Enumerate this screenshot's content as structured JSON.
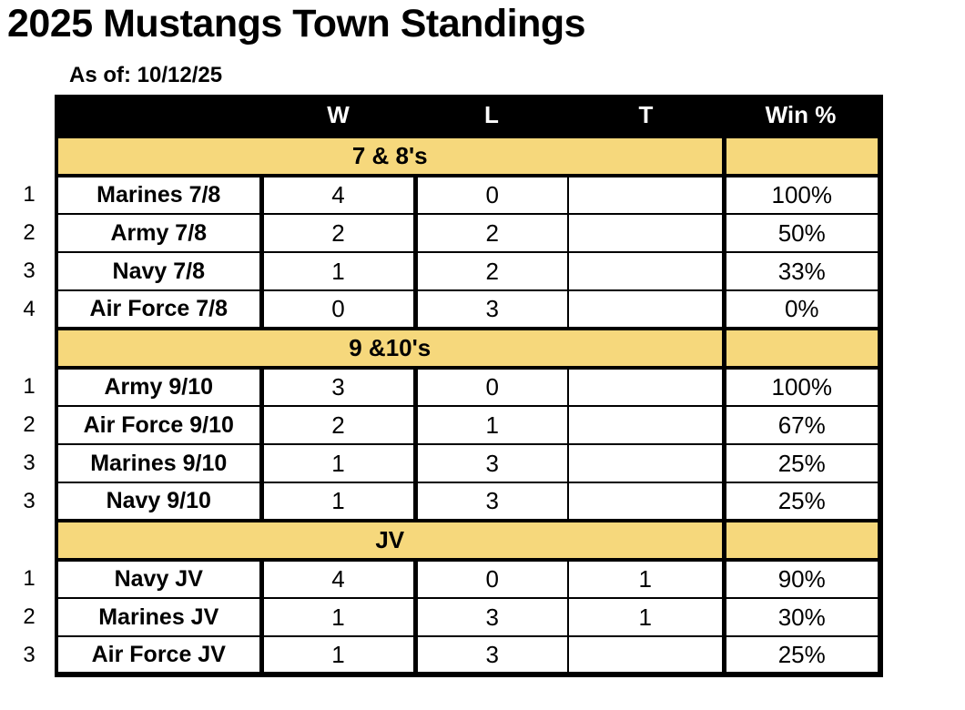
{
  "page": {
    "title": "2025 Mustangs Town Standings",
    "as_of": "As of: 10/12/25"
  },
  "table": {
    "columns": [
      "",
      "W",
      "L",
      "T",
      "Win %"
    ],
    "colors": {
      "header_bg": "#000000",
      "header_text": "#FFFFFF",
      "section_bg": "#F6D87C",
      "border": "#000000",
      "text": "#000000"
    },
    "sections": [
      {
        "label": "7 & 8's",
        "rows": [
          {
            "rank": "1",
            "team": "Marines 7/8",
            "w": "4",
            "l": "0",
            "t": "",
            "win_pct": "100%"
          },
          {
            "rank": "2",
            "team": "Army 7/8",
            "w": "2",
            "l": "2",
            "t": "",
            "win_pct": "50%"
          },
          {
            "rank": "3",
            "team": "Navy 7/8",
            "w": "1",
            "l": "2",
            "t": "",
            "win_pct": "33%"
          },
          {
            "rank": "4",
            "team": "Air Force 7/8",
            "w": "0",
            "l": "3",
            "t": "",
            "win_pct": "0%"
          }
        ]
      },
      {
        "label": "9 &10's",
        "rows": [
          {
            "rank": "1",
            "team": "Army 9/10",
            "w": "3",
            "l": "0",
            "t": "",
            "win_pct": "100%"
          },
          {
            "rank": "2",
            "team": "Air Force 9/10",
            "w": "2",
            "l": "1",
            "t": "",
            "win_pct": "67%"
          },
          {
            "rank": "3",
            "team": "Marines 9/10",
            "w": "1",
            "l": "3",
            "t": "",
            "win_pct": "25%"
          },
          {
            "rank": "3",
            "team": "Navy 9/10",
            "w": "1",
            "l": "3",
            "t": "",
            "win_pct": "25%"
          }
        ]
      },
      {
        "label": "JV",
        "rows": [
          {
            "rank": "1",
            "team": "Navy JV",
            "w": "4",
            "l": "0",
            "t": "1",
            "win_pct": "90%"
          },
          {
            "rank": "2",
            "team": "Marines JV",
            "w": "1",
            "l": "3",
            "t": "1",
            "win_pct": "30%"
          },
          {
            "rank": "3",
            "team": "Air Force JV",
            "w": "1",
            "l": "3",
            "t": "",
            "win_pct": "25%"
          }
        ]
      }
    ]
  }
}
